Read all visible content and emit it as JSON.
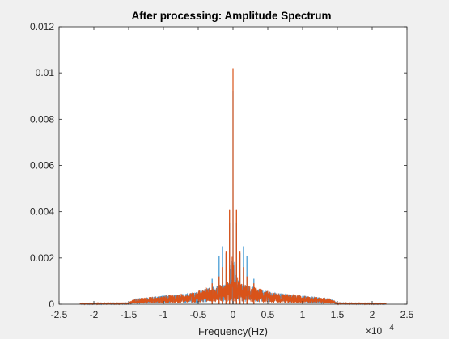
{
  "chart_data": {
    "type": "line",
    "title": "After processing: Amplitude Spectrum",
    "xlabel": "Frequency(Hz)",
    "ylabel": "",
    "xlim": [
      -25000,
      25000
    ],
    "ylim": [
      0,
      0.012
    ],
    "x_exponent": 4,
    "x_exponent_label": "×10",
    "x_ticks": [
      -25000,
      -20000,
      -15000,
      -10000,
      -5000,
      0,
      5000,
      10000,
      15000,
      20000,
      25000
    ],
    "x_tick_labels": [
      "-2.5",
      "-2",
      "-1.5",
      "-1",
      "-0.5",
      "0",
      "0.5",
      "1",
      "1.5",
      "2",
      "2.5"
    ],
    "y_ticks": [
      0,
      0.002,
      0.004,
      0.006,
      0.008,
      0.01,
      0.012
    ],
    "y_tick_labels": [
      "0",
      "0.002",
      "0.004",
      "0.006",
      "0.008",
      "0.01",
      "0.012"
    ],
    "grid": false,
    "legend": "none",
    "series": [
      {
        "color": "#4d9fd6",
        "peak": 0.0092,
        "peaks": [
          {
            "x": -3000,
            "y": 0.0011
          },
          {
            "x": -2000,
            "y": 0.0021
          },
          {
            "x": -1500,
            "y": 0.0025
          },
          {
            "x": -1000,
            "y": 0.0022
          },
          {
            "x": -500,
            "y": 0.0035
          },
          {
            "x": 0,
            "y": 0.0092
          },
          {
            "x": 500,
            "y": 0.0035
          },
          {
            "x": 1000,
            "y": 0.0022
          },
          {
            "x": 1500,
            "y": 0.0025
          },
          {
            "x": 2000,
            "y": 0.0021
          },
          {
            "x": 3000,
            "y": 0.0011
          }
        ],
        "envelope": [
          {
            "x": -22000,
            "y": 2e-05
          },
          {
            "x": -15000,
            "y": 5e-05
          },
          {
            "x": -14000,
            "y": 0.0002
          },
          {
            "x": -10000,
            "y": 0.0003
          },
          {
            "x": -6000,
            "y": 0.0004
          },
          {
            "x": -3000,
            "y": 0.0006
          },
          {
            "x": 0,
            "y": 0.0008
          },
          {
            "x": 3000,
            "y": 0.0006
          },
          {
            "x": 6000,
            "y": 0.0004
          },
          {
            "x": 10000,
            "y": 0.0003
          },
          {
            "x": 14000,
            "y": 0.0002
          },
          {
            "x": 15000,
            "y": 5e-05
          },
          {
            "x": 22000,
            "y": 2e-05
          }
        ]
      },
      {
        "color": "#d95319",
        "peak": 0.0102,
        "peaks": [
          {
            "x": -3000,
            "y": 0.0009
          },
          {
            "x": -2000,
            "y": 0.0012
          },
          {
            "x": -1500,
            "y": 0.0016
          },
          {
            "x": -1000,
            "y": 0.0023
          },
          {
            "x": -500,
            "y": 0.0041
          },
          {
            "x": 0,
            "y": 0.0102
          },
          {
            "x": 500,
            "y": 0.0041
          },
          {
            "x": 1000,
            "y": 0.0023
          },
          {
            "x": 1500,
            "y": 0.0016
          },
          {
            "x": 2000,
            "y": 0.0012
          },
          {
            "x": 3000,
            "y": 0.0009
          }
        ],
        "envelope": [
          {
            "x": -22000,
            "y": 2e-05
          },
          {
            "x": -15000,
            "y": 5e-05
          },
          {
            "x": -14000,
            "y": 0.0002
          },
          {
            "x": -10000,
            "y": 0.0003
          },
          {
            "x": -6000,
            "y": 0.0004
          },
          {
            "x": -3000,
            "y": 0.0006
          },
          {
            "x": 0,
            "y": 0.0008
          },
          {
            "x": 3000,
            "y": 0.0006
          },
          {
            "x": 6000,
            "y": 0.0004
          },
          {
            "x": 10000,
            "y": 0.0003
          },
          {
            "x": 14000,
            "y": 0.0002
          },
          {
            "x": 15000,
            "y": 5e-05
          },
          {
            "x": 22000,
            "y": 2e-05
          }
        ]
      }
    ]
  }
}
